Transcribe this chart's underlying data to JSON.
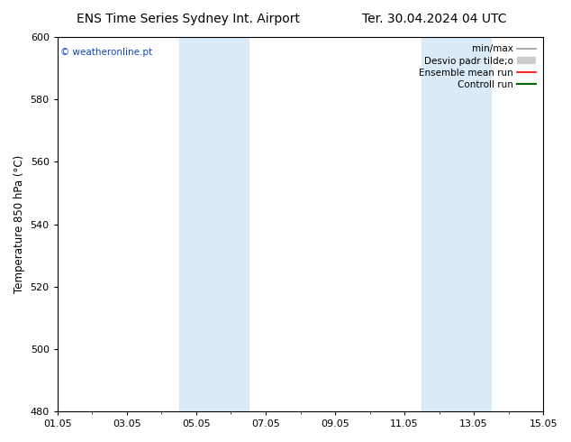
{
  "title_left": "ENS Time Series Sydney Int. Airport",
  "title_right": "Ter. 30.04.2024 04 UTC",
  "ylabel": "Temperature 850 hPa (°C)",
  "ylim": [
    480,
    600
  ],
  "yticks": [
    480,
    500,
    520,
    540,
    560,
    580,
    600
  ],
  "xtick_labels": [
    "01.05",
    "03.05",
    "05.05",
    "07.05",
    "09.05",
    "11.05",
    "13.05",
    "15.05"
  ],
  "xtick_positions": [
    0,
    2,
    4,
    6,
    8,
    10,
    12,
    14
  ],
  "xlim": [
    0,
    14
  ],
  "shaded_bands": [
    {
      "x_start": 3.5,
      "x_end": 5.5
    },
    {
      "x_start": 10.5,
      "x_end": 12.5
    }
  ],
  "shade_color": "#daeaf7",
  "watermark": "© weatheronline.pt",
  "watermark_color": "#1144cc",
  "legend_entries": [
    {
      "label": "min/max",
      "color": "#999999",
      "lw": 1.2,
      "type": "line"
    },
    {
      "label": "Desvio padr tilde;o",
      "color": "#cccccc",
      "lw": 6,
      "type": "band"
    },
    {
      "label": "Ensemble mean run",
      "color": "#ff0000",
      "lw": 1.2,
      "type": "line"
    },
    {
      "label": "Controll run",
      "color": "#006600",
      "lw": 1.5,
      "type": "line"
    }
  ],
  "bg_color": "#ffffff",
  "plot_bg_color": "#ffffff",
  "title_fontsize": 10,
  "tick_fontsize": 8,
  "label_fontsize": 8.5,
  "legend_fontsize": 7.5
}
